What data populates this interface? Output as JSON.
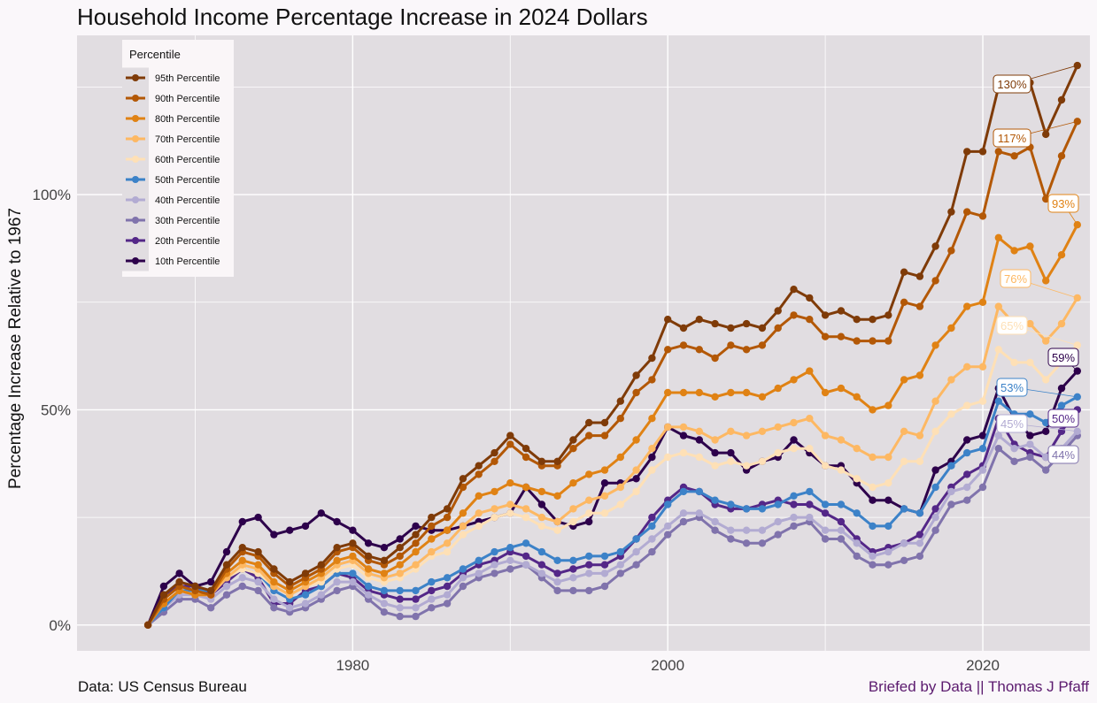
{
  "title": "Household Income Percentage Increase in 2024 Dollars",
  "source": "Data: US Census Bureau",
  "credit": "Briefed by Data || Thomas J Pfaff",
  "chart_data": {
    "type": "line",
    "title": "Household Income Percentage Increase in 2024 Dollars",
    "xlabel": "",
    "ylabel": "Percentage Increase Relative to 1967",
    "xlim": [
      1962.5,
      2026.8
    ],
    "ylim": [
      -6,
      137
    ],
    "xticks": [
      1980,
      2000,
      2020
    ],
    "xtick_labels": [
      "1980",
      "2000",
      "2020"
    ],
    "yticks": [
      0,
      50,
      100
    ],
    "ytick_labels": [
      "0%",
      "50%",
      "100%"
    ],
    "grid": true,
    "legend": {
      "title": "Percentile",
      "position": "top-left"
    },
    "start_year": 1967,
    "series": [
      {
        "name": "95th Percentile",
        "color": "#7f3b08",
        "end_label": "130%",
        "values": [
          0,
          7,
          10,
          9,
          8,
          14,
          18,
          17,
          13,
          10,
          12,
          14,
          18,
          19,
          16,
          15,
          18,
          21,
          25,
          27,
          34,
          37,
          40,
          44,
          41,
          38,
          38,
          43,
          47,
          47,
          52,
          58,
          62,
          71,
          69,
          71,
          70,
          69,
          70,
          69,
          73,
          78,
          76,
          72,
          73,
          71,
          71,
          72,
          82,
          81,
          88,
          96,
          110,
          110,
          125,
          127,
          126,
          114,
          122,
          130
        ]
      },
      {
        "name": "90th Percentile",
        "color": "#b35806",
        "end_label": "117%",
        "values": [
          0,
          6,
          9,
          8,
          7,
          13,
          17,
          16,
          12,
          9,
          11,
          13,
          17,
          18,
          15,
          14,
          16,
          19,
          23,
          25,
          32,
          35,
          38,
          42,
          39,
          37,
          37,
          41,
          44,
          44,
          48,
          54,
          57,
          64,
          65,
          64,
          62,
          65,
          64,
          65,
          69,
          72,
          71,
          67,
          67,
          66,
          66,
          66,
          75,
          74,
          80,
          87,
          96,
          95,
          110,
          109,
          111,
          99,
          109,
          117
        ]
      },
      {
        "name": "80th Percentile",
        "color": "#e08214",
        "end_label": "93%",
        "values": [
          0,
          5,
          8,
          7,
          7,
          12,
          15,
          14,
          10,
          8,
          10,
          12,
          15,
          16,
          13,
          12,
          14,
          17,
          20,
          22,
          26,
          30,
          31,
          33,
          32,
          31,
          30,
          33,
          35,
          36,
          39,
          43,
          48,
          54,
          54,
          54,
          53,
          54,
          54,
          53,
          55,
          57,
          59,
          54,
          55,
          53,
          50,
          51,
          57,
          58,
          65,
          69,
          74,
          75,
          90,
          87,
          88,
          80,
          86,
          93
        ]
      },
      {
        "name": "70th Percentile",
        "color": "#fdb863",
        "end_label": "76%",
        "values": [
          0,
          5,
          8,
          7,
          7,
          11,
          14,
          13,
          9,
          7,
          9,
          11,
          14,
          15,
          12,
          11,
          12,
          14,
          17,
          19,
          23,
          26,
          27,
          28,
          27,
          25,
          24,
          27,
          29,
          30,
          32,
          36,
          41,
          46,
          46,
          45,
          43,
          45,
          44,
          45,
          46,
          47,
          48,
          44,
          43,
          41,
          39,
          39,
          45,
          44,
          52,
          57,
          60,
          60,
          74,
          70,
          70,
          66,
          70,
          76
        ]
      },
      {
        "name": "60th Percentile",
        "color": "#fee0b6",
        "end_label": "65%",
        "values": [
          0,
          5,
          8,
          7,
          7,
          11,
          13,
          12,
          9,
          7,
          9,
          10,
          13,
          14,
          11,
          10,
          11,
          13,
          16,
          17,
          21,
          23,
          25,
          26,
          25,
          23,
          22,
          24,
          26,
          26,
          28,
          31,
          36,
          39,
          40,
          39,
          37,
          38,
          37,
          38,
          40,
          41,
          41,
          37,
          36,
          34,
          32,
          33,
          38,
          38,
          45,
          49,
          51,
          52,
          64,
          61,
          61,
          57,
          61,
          65
        ]
      },
      {
        "name": "50th Percentile",
        "color": "#3c82c8",
        "end_label": "53%",
        "values": [
          0,
          4,
          8,
          8,
          8,
          11,
          13,
          12,
          8,
          6,
          7,
          9,
          12,
          12,
          9,
          8,
          8,
          8,
          10,
          11,
          13,
          15,
          17,
          18,
          19,
          17,
          15,
          15,
          16,
          16,
          17,
          20,
          23,
          28,
          31,
          31,
          29,
          28,
          27,
          27,
          28,
          30,
          31,
          28,
          28,
          26,
          23,
          23,
          27,
          26,
          32,
          37,
          40,
          41,
          52,
          49,
          49,
          47,
          51,
          53
        ]
      },
      {
        "name": "40th Percentile",
        "color": "#b2abd2",
        "end_label": "45%",
        "values": [
          0,
          4,
          7,
          7,
          6,
          9,
          11,
          10,
          6,
          4,
          5,
          7,
          10,
          10,
          7,
          5,
          4,
          4,
          6,
          7,
          11,
          12,
          14,
          15,
          14,
          12,
          10,
          11,
          12,
          12,
          14,
          17,
          20,
          23,
          26,
          26,
          24,
          22,
          22,
          22,
          24,
          25,
          25,
          22,
          22,
          19,
          16,
          17,
          19,
          19,
          25,
          31,
          32,
          36,
          44,
          41,
          42,
          39,
          41,
          45
        ]
      },
      {
        "name": "30th Percentile",
        "color": "#8073ac",
        "end_label": "44%",
        "values": [
          0,
          3,
          6,
          6,
          4,
          7,
          9,
          8,
          4,
          3,
          4,
          6,
          8,
          9,
          6,
          3,
          2,
          2,
          4,
          5,
          9,
          11,
          12,
          13,
          14,
          11,
          8,
          8,
          8,
          9,
          12,
          14,
          17,
          21,
          24,
          25,
          22,
          20,
          19,
          19,
          21,
          23,
          24,
          20,
          20,
          16,
          14,
          14,
          15,
          16,
          22,
          28,
          29,
          32,
          41,
          38,
          39,
          36,
          40,
          44
        ]
      },
      {
        "name": "20th Percentile",
        "color": "#542788",
        "end_label": "50%",
        "values": [
          0,
          7,
          9,
          9,
          7,
          10,
          13,
          11,
          5,
          5,
          8,
          9,
          12,
          11,
          8,
          7,
          6,
          6,
          8,
          9,
          12,
          14,
          15,
          17,
          16,
          14,
          12,
          13,
          14,
          14,
          16,
          20,
          25,
          29,
          32,
          31,
          28,
          27,
          27,
          28,
          29,
          28,
          28,
          26,
          24,
          20,
          17,
          18,
          19,
          21,
          27,
          32,
          35,
          37,
          48,
          42,
          40,
          39,
          45,
          50
        ]
      },
      {
        "name": "10th Percentile",
        "color": "#2d004b",
        "end_label": "59%",
        "values": [
          0,
          9,
          12,
          9,
          10,
          17,
          24,
          25,
          21,
          22,
          23,
          26,
          24,
          22,
          19,
          18,
          20,
          23,
          22,
          22,
          23,
          24,
          25,
          26,
          32,
          28,
          24,
          23,
          24,
          33,
          33,
          34,
          39,
          46,
          44,
          43,
          40,
          40,
          36,
          38,
          39,
          43,
          40,
          37,
          37,
          33,
          29,
          29,
          27,
          26,
          36,
          38,
          43,
          44,
          55,
          48,
          44,
          45,
          55,
          59
        ]
      }
    ]
  }
}
